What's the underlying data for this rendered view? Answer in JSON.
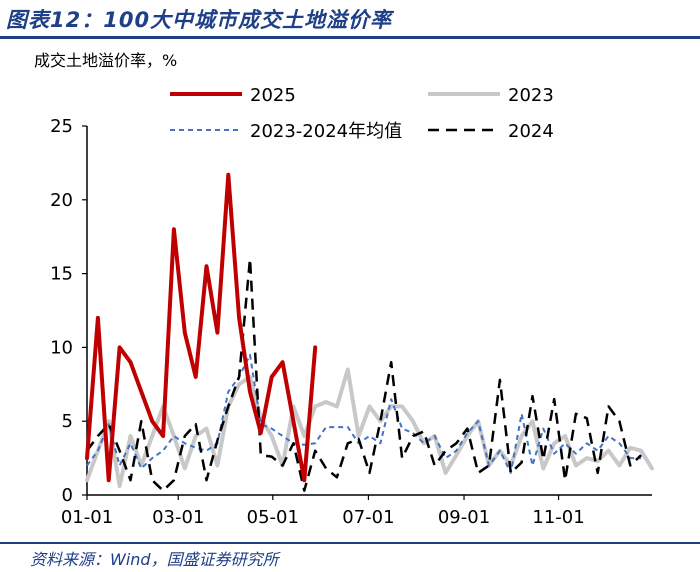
{
  "figure": {
    "title": "图表12：100大中城市成交土地溢价率",
    "source": "资料来源：Wind，国盛证券研究所"
  },
  "chart_data": {
    "type": "line",
    "unit_label": "成交土地溢价率，%",
    "ylim": [
      0,
      25
    ],
    "yticks": [
      "0",
      "5",
      "10",
      "15",
      "20",
      "25"
    ],
    "xlim": [
      0,
      52
    ],
    "xticks": [
      {
        "label": "01-01",
        "week": 0
      },
      {
        "label": "03-01",
        "week": 8.4
      },
      {
        "label": "05-01",
        "week": 17.1
      },
      {
        "label": "07-01",
        "week": 25.9
      },
      {
        "label": "09-01",
        "week": 34.7
      },
      {
        "label": "11-01",
        "week": 43.4
      }
    ],
    "grid": false,
    "legend_position": "top",
    "series": [
      {
        "name": "2025",
        "color": "#c00000",
        "width": 4,
        "dash": "",
        "values": [
          2.5,
          12,
          1,
          10,
          9,
          7,
          5,
          4,
          18,
          11,
          8,
          15.5,
          11,
          21.7,
          12,
          7,
          4.2,
          8,
          9,
          5,
          1,
          10
        ]
      },
      {
        "name": "2023",
        "color": "#c8c8c8",
        "width": 4,
        "dash": "",
        "values": [
          1,
          3,
          5,
          0.6,
          4,
          2,
          4,
          6,
          4,
          1.8,
          4,
          4.5,
          2,
          6,
          7.5,
          8,
          5.2,
          4,
          2,
          6,
          4,
          6,
          6.3,
          6,
          8.5,
          4,
          6,
          5,
          6,
          6,
          5,
          3.5,
          4,
          1.5,
          2.7,
          4,
          5,
          2,
          3,
          2,
          4,
          5,
          1.8,
          3.5,
          4,
          2,
          2.5,
          2.3,
          3,
          2,
          3.2,
          3,
          1.8
        ]
      },
      {
        "name": "2023-2024年均值",
        "color": "#4472c4",
        "width": 2,
        "dash": "5,4",
        "values": [
          2,
          3,
          4.8,
          2,
          3.5,
          1.8,
          2.5,
          3,
          4,
          3.5,
          3.2,
          3,
          3.5,
          7,
          8,
          9.5,
          4.8,
          4.5,
          4,
          3.5,
          3.4,
          3.5,
          4.6,
          4.6,
          4.6,
          3.5,
          4,
          3.5,
          6.5,
          4.5,
          4.2,
          3.5,
          4,
          2.5,
          3,
          4.2,
          5,
          2,
          3,
          1.5,
          5.5,
          2,
          4.5,
          2.8,
          3.5,
          2.8,
          3.5,
          3,
          4,
          3.5,
          2.5,
          2.5
        ]
      },
      {
        "name": "2024",
        "color": "#000000",
        "width": 2.5,
        "dash": "11,7",
        "values": [
          3,
          4,
          4.8,
          3,
          1,
          5,
          1,
          0.3,
          1,
          4,
          4.8,
          1,
          3.7,
          6,
          8,
          16,
          2.7,
          2.6,
          2,
          3.5,
          0.3,
          3,
          1.8,
          1.2,
          3.5,
          3.8,
          1.5,
          5,
          9,
          2.5,
          4,
          4.3,
          2,
          3,
          3.5,
          4.5,
          1.5,
          2,
          7.8,
          1.5,
          2.2,
          6.7,
          2.4,
          6.5,
          1,
          5.5,
          5.2,
          1.5,
          6,
          5,
          2,
          2.7
        ]
      }
    ]
  }
}
